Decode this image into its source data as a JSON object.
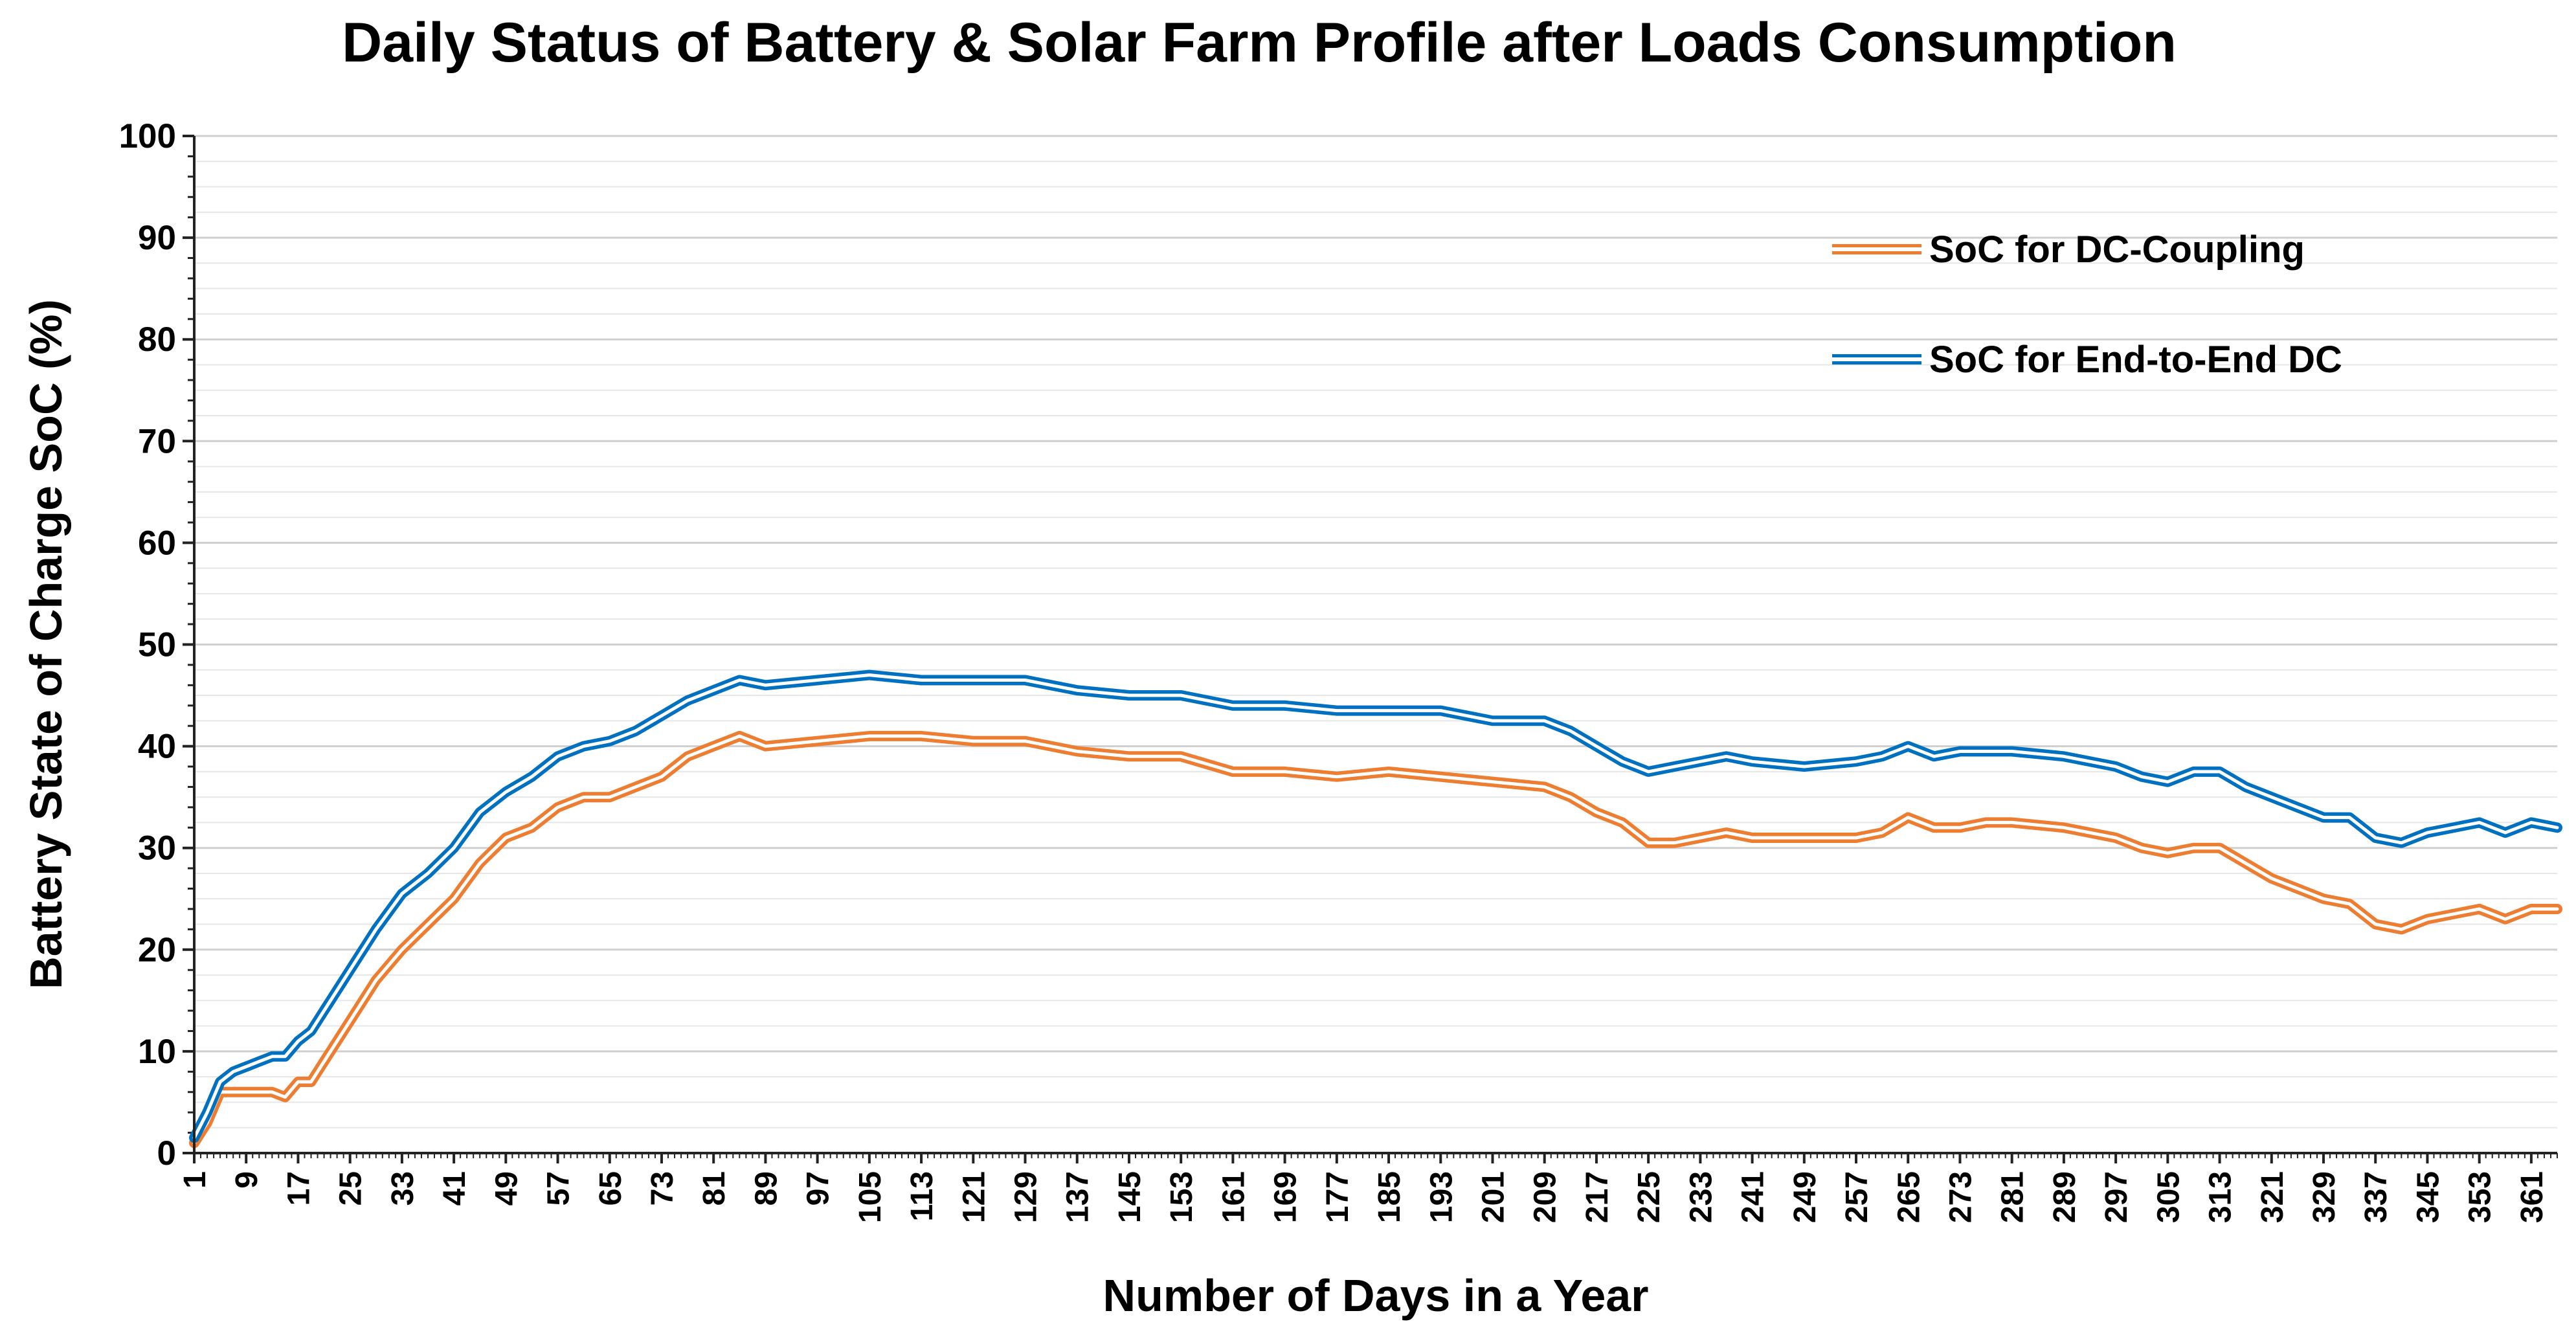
{
  "chart_data": {
    "type": "line",
    "title": "Daily Status of Battery & Solar Farm Profile after Loads Consumption",
    "xlabel": "Number of Days in a Year",
    "ylabel": "Battery State of Charge SoC (%)",
    "xlim": [
      1,
      365
    ],
    "ylim": [
      0,
      100
    ],
    "y_ticks": [
      0,
      10,
      20,
      30,
      40,
      50,
      60,
      70,
      80,
      90,
      100
    ],
    "x_ticks": [
      1,
      9,
      17,
      25,
      33,
      41,
      49,
      57,
      65,
      73,
      81,
      89,
      97,
      105,
      113,
      121,
      129,
      137,
      145,
      153,
      161,
      169,
      177,
      185,
      193,
      201,
      209,
      217,
      225,
      233,
      241,
      249,
      257,
      265,
      273,
      281,
      289,
      297,
      305,
      313,
      321,
      329,
      337,
      345,
      353,
      361
    ],
    "grid": true,
    "legend_position": "top-right",
    "series": [
      {
        "name": "SoC for DC-Coupling",
        "color": "#ED7D31",
        "x": [
          1,
          3,
          5,
          7,
          9,
          11,
          13,
          15,
          17,
          19,
          21,
          25,
          29,
          33,
          37,
          41,
          45,
          49,
          53,
          57,
          61,
          65,
          69,
          73,
          77,
          81,
          85,
          89,
          97,
          105,
          113,
          121,
          129,
          137,
          145,
          153,
          161,
          169,
          177,
          185,
          193,
          201,
          209,
          213,
          217,
          221,
          225,
          229,
          233,
          237,
          241,
          249,
          257,
          261,
          265,
          269,
          273,
          277,
          281,
          289,
          297,
          301,
          305,
          309,
          313,
          317,
          321,
          325,
          329,
          333,
          337,
          341,
          345,
          349,
          353,
          357,
          361,
          365
        ],
        "y": [
          1,
          3,
          6,
          6,
          6,
          6,
          6,
          5.5,
          7,
          7,
          9,
          13,
          17,
          20,
          22.5,
          25,
          28.5,
          31,
          32,
          34,
          35,
          35,
          36,
          37,
          39,
          40,
          41,
          40,
          40.5,
          41,
          41,
          40.5,
          40.5,
          39.5,
          39,
          39,
          37.5,
          37.5,
          37,
          37.5,
          37,
          36.5,
          36,
          35,
          33.5,
          32.5,
          30.5,
          30.5,
          31,
          31.5,
          31,
          31,
          31,
          31.5,
          33,
          32,
          32,
          32.5,
          32.5,
          32,
          31,
          30,
          29.5,
          30,
          30,
          28.5,
          27,
          26,
          25,
          24.5,
          22.5,
          22,
          23,
          23.5,
          24,
          23,
          24,
          24
        ]
      },
      {
        "name": "SoC for End-to-End DC",
        "color": "#0070C0",
        "x": [
          1,
          3,
          5,
          7,
          9,
          11,
          13,
          15,
          17,
          19,
          21,
          25,
          29,
          33,
          37,
          41,
          45,
          49,
          53,
          57,
          61,
          65,
          69,
          73,
          77,
          81,
          85,
          89,
          97,
          105,
          113,
          121,
          129,
          137,
          145,
          153,
          161,
          169,
          177,
          185,
          193,
          201,
          209,
          213,
          217,
          221,
          225,
          229,
          233,
          237,
          241,
          249,
          257,
          261,
          265,
          269,
          273,
          277,
          281,
          289,
          297,
          301,
          305,
          309,
          313,
          317,
          321,
          325,
          329,
          333,
          337,
          341,
          345,
          349,
          353,
          357,
          361,
          365
        ],
        "y": [
          1.5,
          4,
          7,
          8,
          8.5,
          9,
          9.5,
          9.5,
          11,
          12,
          14,
          18,
          22,
          25.5,
          27.5,
          30,
          33.5,
          35.5,
          37,
          39,
          40,
          40.5,
          41.5,
          43,
          44.5,
          45.5,
          46.5,
          46,
          46.5,
          47,
          46.5,
          46.5,
          46.5,
          45.5,
          45,
          45,
          44,
          44,
          43.5,
          43.5,
          43.5,
          42.5,
          42.5,
          41.5,
          40,
          38.5,
          37.5,
          38,
          38.5,
          39,
          38.5,
          38,
          38.5,
          39,
          40,
          39,
          39.5,
          39.5,
          39.5,
          39,
          38,
          37,
          36.5,
          37.5,
          37.5,
          36,
          35,
          34,
          33,
          33,
          31,
          30.5,
          31.5,
          32,
          32.5,
          31.5,
          32.5,
          32
        ]
      }
    ]
  }
}
